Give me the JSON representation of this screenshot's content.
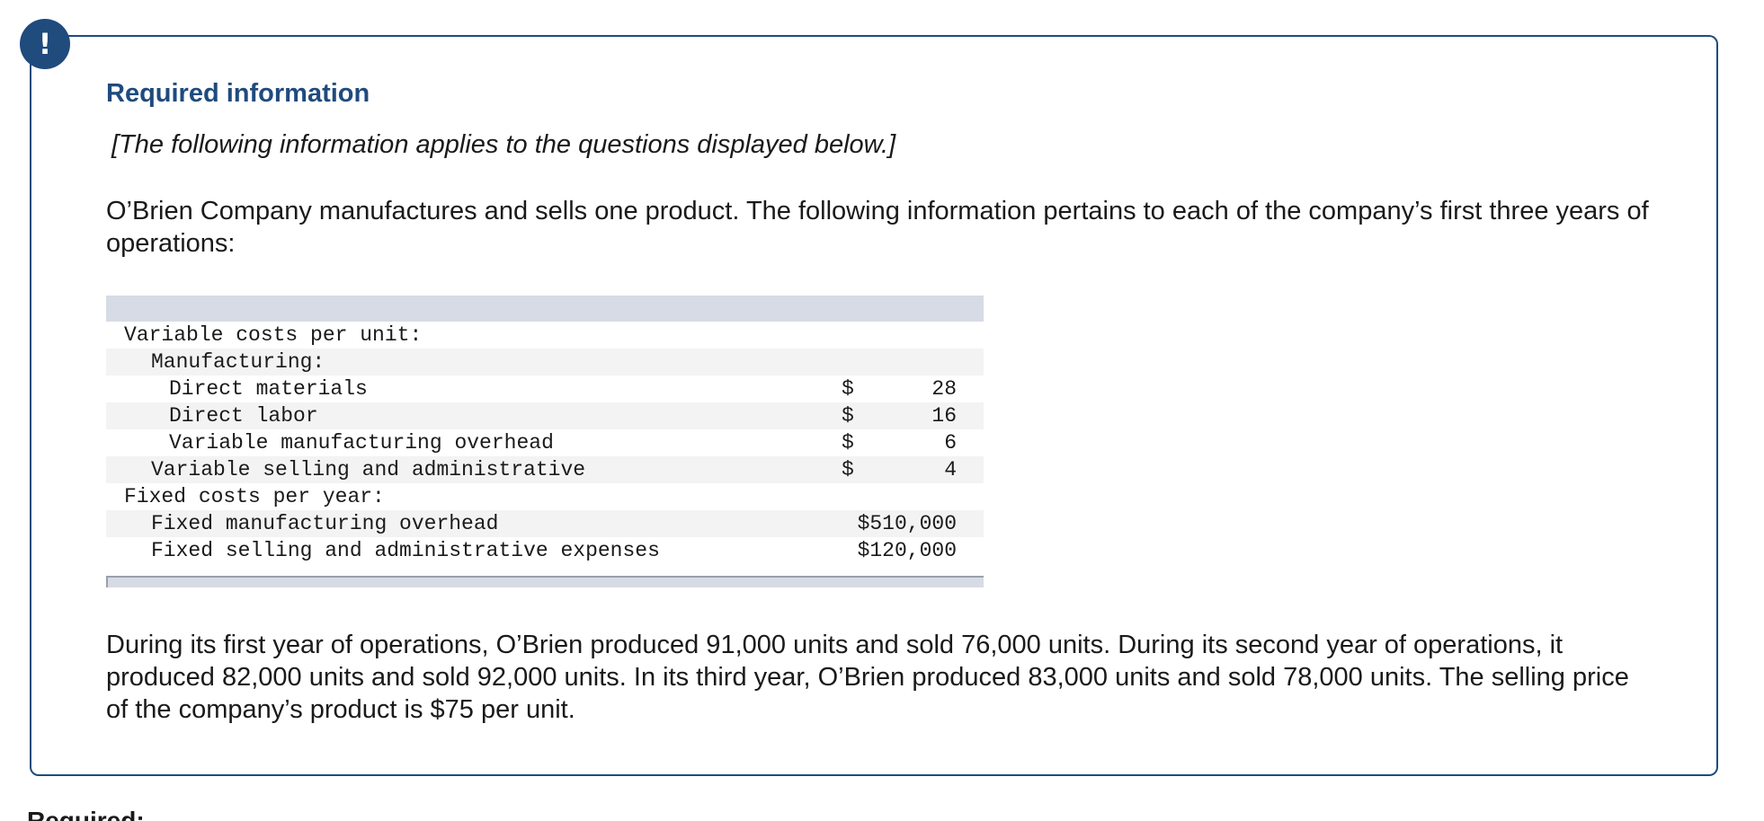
{
  "alert_icon_glyph": "!",
  "heading": "Required information",
  "note": "[The following information applies to the questions displayed below.]",
  "intro": "O’Brien Company manufactures and sells one product. The following information pertains to each of the company’s first three years of operations:",
  "table": {
    "rows": [
      {
        "label": "Variable costs per unit:",
        "currency": "",
        "value": ""
      },
      {
        "label": "Manufacturing:",
        "currency": "",
        "value": ""
      },
      {
        "label": "Direct materials",
        "currency": "$",
        "value": "28"
      },
      {
        "label": "Direct labor",
        "currency": "$",
        "value": "16"
      },
      {
        "label": "Variable manufacturing overhead",
        "currency": "$",
        "value": "6"
      },
      {
        "label": "Variable selling and administrative",
        "currency": "$",
        "value": "4"
      },
      {
        "label": "Fixed costs per year:",
        "currency": "",
        "value": ""
      },
      {
        "label": "Fixed manufacturing overhead",
        "currency": "",
        "value": "$510,000"
      },
      {
        "label": "Fixed selling and administrative expenses",
        "currency": "",
        "value": "$120,000"
      }
    ]
  },
  "narrative": "During its first year of operations, O’Brien produced 91,000 units and sold 76,000 units. During its second year of operations, it produced 82,000 units and sold 92,000 units. In its third year, O’Brien produced 83,000 units and sold 78,000 units. The selling price of the company’s product is $75 per unit.",
  "partial_heading": "Required:",
  "colors": {
    "accent": "#1f4b7d",
    "table_header": "#d7dbe5",
    "row_shade": "#f3f3f3"
  }
}
